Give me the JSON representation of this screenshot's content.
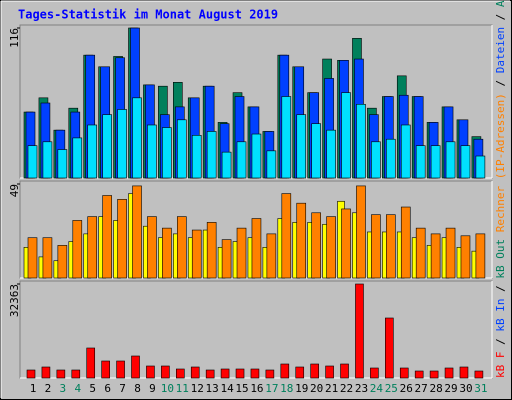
{
  "chart_data": [
    {
      "type": "bar",
      "title": "Tages-Statistik im Monat August 2019",
      "ylim": [
        0,
        116
      ],
      "yticks": [
        116
      ],
      "series": [
        {
          "color": "#00805c",
          "values": [
            51,
            62,
            37,
            54,
            95,
            86,
            94,
            116,
            72,
            71,
            74,
            62,
            71,
            43,
            66,
            55,
            36,
            95,
            86,
            66,
            92,
            91,
            108,
            54,
            63,
            79,
            63,
            43,
            55,
            45,
            32
          ]
        },
        {
          "color": "#0040ff",
          "values": [
            51,
            58,
            37,
            51,
            95,
            86,
            93,
            116,
            72,
            49,
            55,
            62,
            71,
            42,
            63,
            55,
            36,
            95,
            86,
            66,
            77,
            91,
            92,
            49,
            63,
            64,
            63,
            43,
            55,
            45,
            30
          ]
        },
        {
          "color": "#00e0ff",
          "values": [
            25,
            28,
            22,
            31,
            41,
            49,
            53,
            62,
            41,
            39,
            45,
            33,
            36,
            20,
            28,
            34,
            21,
            63,
            49,
            42,
            37,
            66,
            57,
            28,
            30,
            41,
            25,
            25,
            28,
            25,
            17
          ]
        }
      ]
    },
    {
      "type": "bar",
      "ylim": [
        0,
        49
      ],
      "yticks": [
        49
      ],
      "series": [
        {
          "color": "#ffff00",
          "values": [
            16,
            11,
            9,
            19,
            23,
            32,
            30,
            44,
            27,
            21,
            23,
            21,
            25,
            16,
            19,
            21,
            16,
            31,
            29,
            29,
            28,
            40,
            34,
            24,
            24,
            24,
            21,
            17,
            21,
            16,
            14
          ]
        },
        {
          "color": "#ff8000",
          "values": [
            21,
            21,
            17,
            30,
            32,
            43,
            41,
            48,
            32,
            26,
            32,
            25,
            29,
            20,
            26,
            31,
            23,
            44,
            39,
            34,
            32,
            36,
            48,
            33,
            33,
            37,
            26,
            23,
            26,
            22,
            23
          ]
        }
      ]
    },
    {
      "type": "bar",
      "ylim": [
        0,
        32363
      ],
      "yticks": [
        32363
      ],
      "categories": [
        "1",
        "2",
        "3",
        "4",
        "5",
        "6",
        "7",
        "8",
        "9",
        "10",
        "11",
        "12",
        "13",
        "14",
        "15",
        "16",
        "17",
        "18",
        "19",
        "20",
        "21",
        "22",
        "23",
        "24",
        "25",
        "26",
        "27",
        "28",
        "29",
        "30",
        "31"
      ],
      "category_colors": [
        "#000000",
        "#000000",
        "#00805c",
        "#00805c",
        "#000000",
        "#000000",
        "#000000",
        "#000000",
        "#000000",
        "#00805c",
        "#00805c",
        "#000000",
        "#000000",
        "#000000",
        "#000000",
        "#000000",
        "#00805c",
        "#00805c",
        "#000000",
        "#000000",
        "#000000",
        "#000000",
        "#000000",
        "#00805c",
        "#00805c",
        "#000000",
        "#000000",
        "#000000",
        "#000000",
        "#000000",
        "#00805c"
      ],
      "series": [
        {
          "color": "#ff0000",
          "values": [
            2754,
            3787,
            2754,
            2754,
            10329,
            5853,
            5853,
            7574,
            4131,
            4131,
            3099,
            3787,
            2754,
            3099,
            3099,
            3099,
            2754,
            4820,
            3787,
            4820,
            4131,
            4820,
            32363,
            3443,
            20657,
            3443,
            2410,
            2410,
            3443,
            3787,
            2410
          ]
        }
      ]
    }
  ],
  "side_legend": [
    {
      "text": "kB F",
      "color": "#ff0000"
    },
    {
      "text": " / ",
      "color": "#000000"
    },
    {
      "text": "kB In",
      "color": "#0040ff"
    },
    {
      "text": " / ",
      "color": "#000000"
    },
    {
      "text": "kB Out",
      "color": "#00805c"
    },
    {
      "text": " ",
      "color": "#000000"
    },
    {
      "text": "Rechner (IP-Adressen)",
      "color": "#ff8000"
    },
    {
      "text": " / ",
      "color": "#000000"
    },
    {
      "text": "Dateien",
      "color": "#0040ff"
    },
    {
      "text": " / ",
      "color": "#000000"
    },
    {
      "text": "Anfragen",
      "color": "#00805c"
    }
  ]
}
